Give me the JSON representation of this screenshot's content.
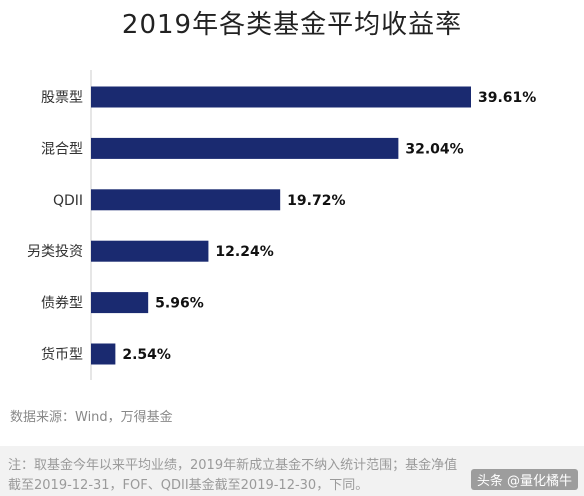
{
  "chart_data": {
    "type": "bar",
    "orientation": "horizontal",
    "title": "2019年各类基金平均收益率",
    "categories": [
      "股票型",
      "混合型",
      "QDII",
      "另类投资",
      "债券型",
      "货币型"
    ],
    "values": [
      39.61,
      32.04,
      19.72,
      12.24,
      5.96,
      2.54
    ],
    "value_labels": [
      "39.61%",
      "32.04%",
      "19.72%",
      "12.24%",
      "5.96%",
      "2.54%"
    ],
    "xlim": [
      0,
      39.61
    ],
    "grid": false,
    "bar_color": "#1a2a70"
  },
  "source": "数据来源：Wind，万得基金",
  "notes": {
    "line1": "注：取基金今年以来平均业绩，2019年新成立基金不纳入统计范围；基金净值",
    "line2": "截至2019-12-31，FOF、QDII基金截至2019-12-30，下同。"
  },
  "watermark": "头条 @量化橘牛"
}
